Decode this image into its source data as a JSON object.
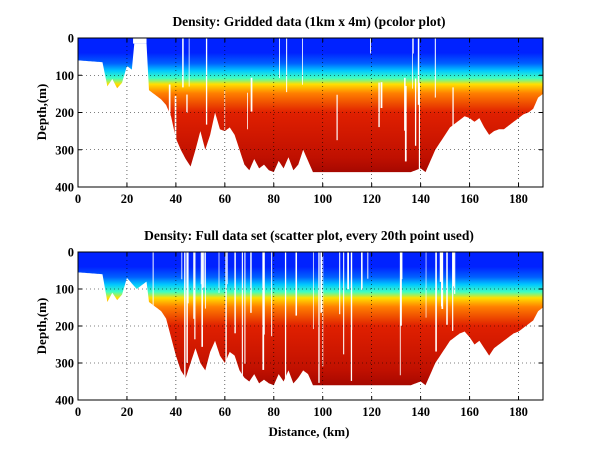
{
  "chart_data": [
    {
      "type": "heatmap",
      "title": "Density: Gridded data (1km x 4m) (pcolor plot)",
      "xlabel": "",
      "ylabel": "Depth,(m)",
      "xlim": [
        0,
        190
      ],
      "ylim": [
        0,
        400
      ],
      "y_reversed": true,
      "xticks": [
        0,
        20,
        40,
        60,
        80,
        100,
        120,
        140,
        160,
        180
      ],
      "yticks": [
        0,
        100,
        200,
        300,
        400
      ],
      "grid": true,
      "colormap": "jet",
      "colors": {
        "surface": "#0022ff",
        "cline": "#00c8ff",
        "mid": "#ffe000",
        "deep": "#e02000",
        "bottom": "#8c0000"
      },
      "max_depth_by_distance": [
        [
          0,
          60
        ],
        [
          10,
          65
        ],
        [
          12,
          130
        ],
        [
          14,
          110
        ],
        [
          16,
          135
        ],
        [
          18,
          120
        ],
        [
          20,
          75
        ],
        [
          22,
          85
        ],
        [
          23,
          15
        ],
        [
          28,
          15
        ],
        [
          29,
          140
        ],
        [
          32,
          155
        ],
        [
          34,
          165
        ],
        [
          36,
          180
        ],
        [
          38,
          210
        ],
        [
          40,
          270
        ],
        [
          42,
          300
        ],
        [
          44,
          325
        ],
        [
          46,
          345
        ],
        [
          48,
          300
        ],
        [
          50,
          250
        ],
        [
          52,
          300
        ],
        [
          54,
          260
        ],
        [
          56,
          200
        ],
        [
          58,
          245
        ],
        [
          60,
          250
        ],
        [
          62,
          240
        ],
        [
          64,
          260
        ],
        [
          66,
          300
        ],
        [
          68,
          340
        ],
        [
          70,
          355
        ],
        [
          72,
          325
        ],
        [
          74,
          350
        ],
        [
          76,
          340
        ],
        [
          78,
          355
        ],
        [
          80,
          360
        ],
        [
          82,
          330
        ],
        [
          84,
          350
        ],
        [
          86,
          320
        ],
        [
          88,
          355
        ],
        [
          90,
          340
        ],
        [
          92,
          300
        ],
        [
          94,
          330
        ],
        [
          96,
          360
        ],
        [
          100,
          360
        ],
        [
          104,
          360
        ],
        [
          108,
          360
        ],
        [
          112,
          360
        ],
        [
          116,
          360
        ],
        [
          120,
          360
        ],
        [
          124,
          360
        ],
        [
          128,
          360
        ],
        [
          132,
          360
        ],
        [
          136,
          360
        ],
        [
          140,
          350
        ],
        [
          142,
          360
        ],
        [
          144,
          330
        ],
        [
          146,
          300
        ],
        [
          148,
          280
        ],
        [
          150,
          260
        ],
        [
          152,
          240
        ],
        [
          154,
          230
        ],
        [
          156,
          220
        ],
        [
          158,
          210
        ],
        [
          160,
          215
        ],
        [
          162,
          225
        ],
        [
          164,
          215
        ],
        [
          166,
          240
        ],
        [
          168,
          260
        ],
        [
          170,
          250
        ],
        [
          172,
          245
        ],
        [
          174,
          245
        ],
        [
          176,
          235
        ],
        [
          178,
          225
        ],
        [
          180,
          215
        ],
        [
          182,
          205
        ],
        [
          184,
          200
        ],
        [
          186,
          190
        ],
        [
          188,
          160
        ],
        [
          190,
          150
        ]
      ]
    },
    {
      "type": "scatter",
      "title": "Density: Full data set (scatter plot, every 20th point used)",
      "xlabel": "Distance, (km)",
      "ylabel": "Depth,(m)",
      "xlim": [
        0,
        190
      ],
      "ylim": [
        0,
        400
      ],
      "y_reversed": true,
      "xticks": [
        0,
        20,
        40,
        60,
        80,
        100,
        120,
        140,
        160,
        180
      ],
      "yticks": [
        0,
        100,
        200,
        300,
        400
      ],
      "grid": true,
      "colormap": "jet",
      "colors": {
        "surface": "#0022ff",
        "cline": "#00c8ff",
        "mid": "#ffe000",
        "deep": "#e02000",
        "bottom": "#8c0000"
      },
      "max_depth_by_distance": [
        [
          0,
          55
        ],
        [
          10,
          60
        ],
        [
          12,
          135
        ],
        [
          14,
          110
        ],
        [
          16,
          130
        ],
        [
          18,
          115
        ],
        [
          20,
          70
        ],
        [
          22,
          85
        ],
        [
          24,
          100
        ],
        [
          28,
          80
        ],
        [
          29,
          135
        ],
        [
          32,
          150
        ],
        [
          34,
          160
        ],
        [
          36,
          180
        ],
        [
          38,
          230
        ],
        [
          40,
          280
        ],
        [
          42,
          320
        ],
        [
          44,
          340
        ],
        [
          46,
          300
        ],
        [
          48,
          260
        ],
        [
          50,
          300
        ],
        [
          52,
          320
        ],
        [
          54,
          270
        ],
        [
          56,
          240
        ],
        [
          58,
          280
        ],
        [
          60,
          300
        ],
        [
          62,
          270
        ],
        [
          64,
          280
        ],
        [
          66,
          320
        ],
        [
          68,
          340
        ],
        [
          70,
          350
        ],
        [
          72,
          330
        ],
        [
          74,
          355
        ],
        [
          76,
          345
        ],
        [
          78,
          355
        ],
        [
          80,
          360
        ],
        [
          82,
          330
        ],
        [
          84,
          350
        ],
        [
          86,
          320
        ],
        [
          88,
          355
        ],
        [
          90,
          340
        ],
        [
          92,
          320
        ],
        [
          94,
          330
        ],
        [
          96,
          360
        ],
        [
          100,
          360
        ],
        [
          104,
          360
        ],
        [
          108,
          360
        ],
        [
          112,
          360
        ],
        [
          116,
          360
        ],
        [
          120,
          360
        ],
        [
          124,
          360
        ],
        [
          128,
          360
        ],
        [
          132,
          360
        ],
        [
          136,
          360
        ],
        [
          140,
          350
        ],
        [
          142,
          360
        ],
        [
          144,
          330
        ],
        [
          146,
          300
        ],
        [
          148,
          280
        ],
        [
          150,
          260
        ],
        [
          152,
          240
        ],
        [
          154,
          230
        ],
        [
          156,
          220
        ],
        [
          158,
          215
        ],
        [
          160,
          230
        ],
        [
          162,
          250
        ],
        [
          164,
          240
        ],
        [
          166,
          260
        ],
        [
          168,
          280
        ],
        [
          170,
          260
        ],
        [
          172,
          250
        ],
        [
          174,
          240
        ],
        [
          176,
          230
        ],
        [
          178,
          220
        ],
        [
          180,
          215
        ],
        [
          182,
          205
        ],
        [
          184,
          195
        ],
        [
          186,
          185
        ],
        [
          188,
          160
        ],
        [
          190,
          150
        ]
      ]
    }
  ]
}
